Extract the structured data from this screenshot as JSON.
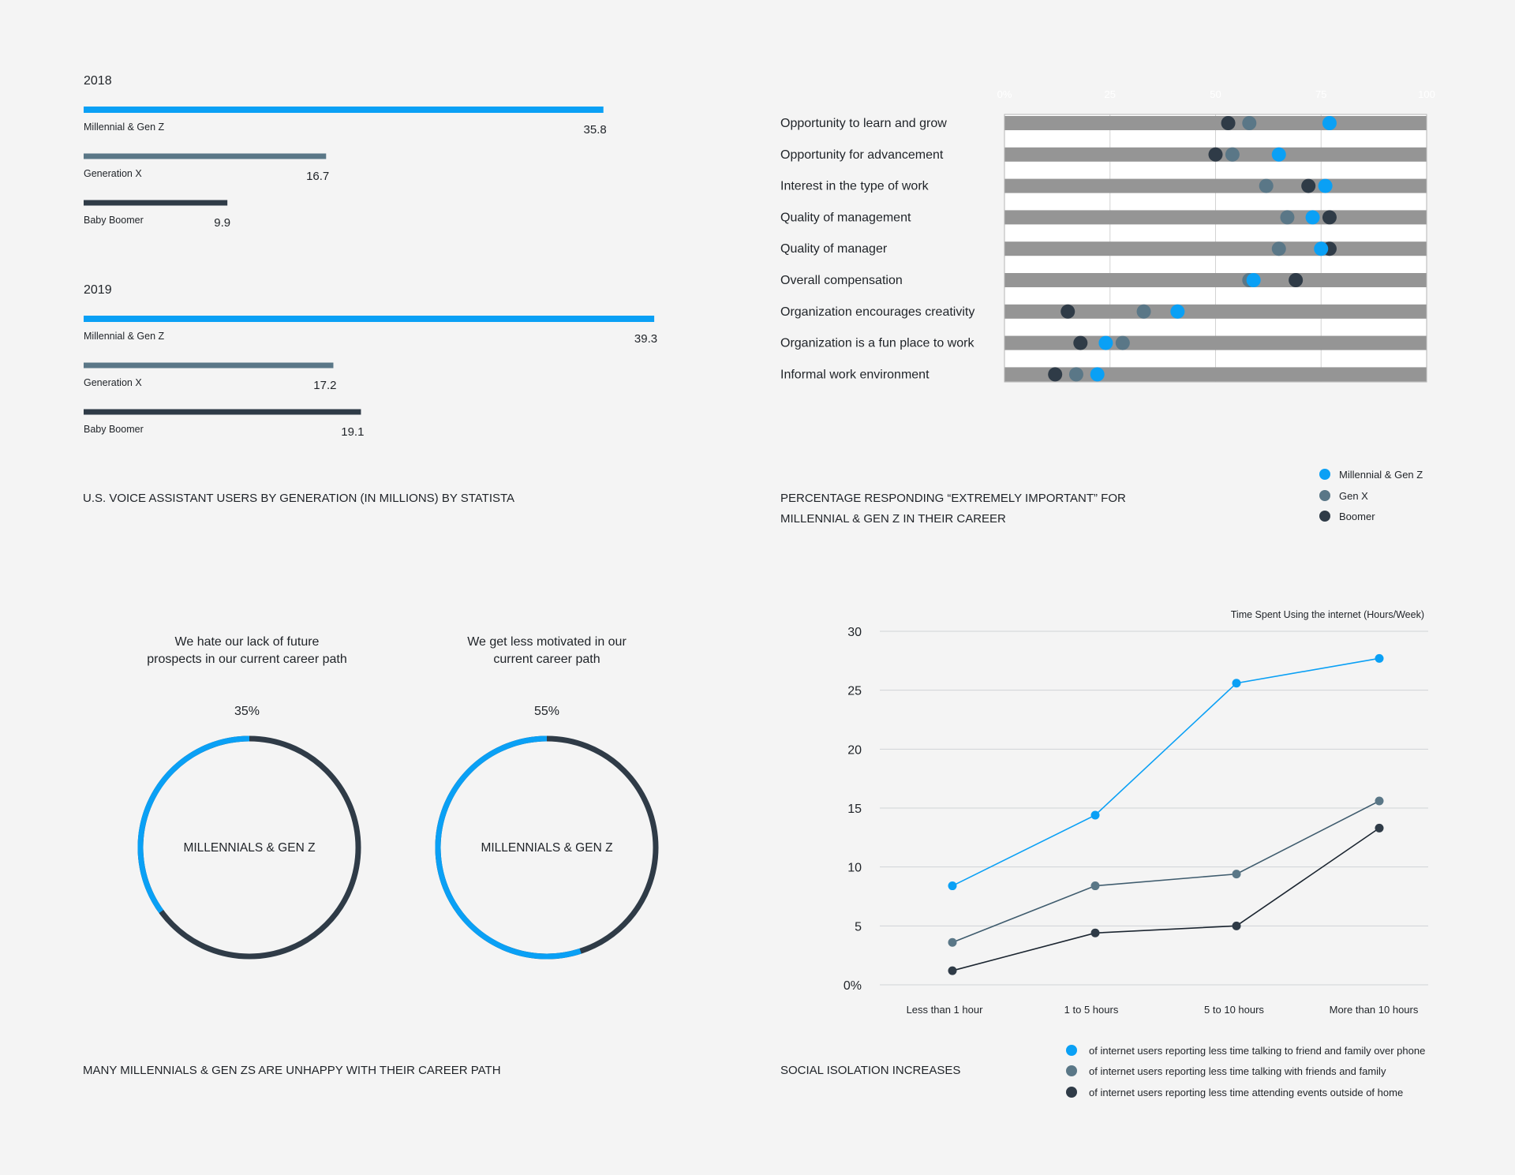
{
  "colors": {
    "millennial": "#0aa0f5",
    "genx": "#5a7787",
    "boomer": "#2f3b47",
    "background": "#f4f4f4",
    "row_band": "#959595",
    "text": "#1f2328"
  },
  "chart_data": [
    {
      "id": "voice-assistant",
      "type": "bar",
      "orientation": "horizontal",
      "title": "U.S. VOICE ASSISTANT USERS BY GENERATION (IN MILLIONS)  BY STATISTA",
      "groups": [
        {
          "year": "2018",
          "bars": [
            {
              "name": "Millennial & Gen Z",
              "label": "35.8",
              "value": 35.8
            },
            {
              "name": "Generation X",
              "label": "16.7",
              "value": 16.7
            },
            {
              "name": "Baby Boomer",
              "label": "9.9",
              "value": 9.9
            }
          ]
        },
        {
          "year": "2019",
          "bars": [
            {
              "name": "Millennial & Gen Z",
              "label": "39.3",
              "value": 39.3
            },
            {
              "name": "Generation X",
              "label": "17.2",
              "value": 17.2
            },
            {
              "name": "Baby Boomer",
              "label": "19.1",
              "value": 19.1
            }
          ]
        }
      ]
    },
    {
      "id": "extremely-important",
      "type": "scatter",
      "title": "PERCENTAGE RESPONDING “EXTREMELY IMPORTANT” FOR MILLENNIAL & GEN Z IN THEIR CAREER",
      "title_lines": [
        "PERCENTAGE RESPONDING “EXTREMELY IMPORTANT” FOR",
        "MILLENNIAL & GEN Z IN THEIR CAREER"
      ],
      "xlim": [
        0,
        100
      ],
      "x_ticks": [
        "0%",
        "25",
        "50",
        "75",
        "100"
      ],
      "legend_position": "bottom-right",
      "series": [
        {
          "name": "Millennial & Gen Z"
        },
        {
          "name": "Gen X"
        },
        {
          "name": "Boomer"
        }
      ],
      "rows": [
        {
          "label": "Opportunity to learn and grow",
          "millennial": 77,
          "genx": 58,
          "boomer": 53
        },
        {
          "label": "Opportunity for advancement",
          "millennial": 65,
          "genx": 54,
          "boomer": 50
        },
        {
          "label": "Interest in the type of work",
          "millennial": 76,
          "genx": 62,
          "boomer": 72
        },
        {
          "label": "Quality of management",
          "millennial": 73,
          "genx": 67,
          "boomer": 77
        },
        {
          "label": "Quality of manager",
          "millennial": 75,
          "genx": 65,
          "boomer": 77
        },
        {
          "label": "Overall compensation",
          "millennial": 59,
          "genx": 58,
          "boomer": 69
        },
        {
          "label": "Organization encourages creativity",
          "millennial": 41,
          "genx": 33,
          "boomer": 15
        },
        {
          "label": "Organization is a fun place to work",
          "millennial": 24,
          "genx": 28,
          "boomer": 18
        },
        {
          "label": "Informal work environment",
          "millennial": 22,
          "genx": 17,
          "boomer": 12
        }
      ]
    },
    {
      "id": "career-path",
      "type": "pie",
      "title": "MANY MILLENNIALS & GEN ZS ARE UNHAPPY WITH THEIR CAREER PATH",
      "donuts": [
        {
          "question_lines": [
            "We hate our lack of future",
            "prospects in our current career path"
          ],
          "percent_label": "35%",
          "value": 35,
          "center_label": "MILLENNIALS & GEN Z"
        },
        {
          "question_lines": [
            "We get less motivated in our",
            "current career path"
          ],
          "percent_label": "55%",
          "value": 55,
          "center_label": "MILLENNIALS & GEN Z"
        }
      ]
    },
    {
      "id": "social-isolation",
      "type": "line",
      "title": "SOCIAL ISOLATION INCREASES",
      "subtitle": "Time Spent Using the internet (Hours/Week)",
      "categories": [
        "Less than 1 hour",
        "1 to 5 hours",
        "5 to 10 hours",
        "More than 10 hours"
      ],
      "ylim": [
        0,
        30
      ],
      "y_ticks": [
        "0%",
        "5",
        "10",
        "15",
        "20",
        "25",
        "30"
      ],
      "grid": true,
      "series": [
        {
          "name": "of internet users reporting less time talking to friend and family over phone",
          "values": [
            8.4,
            14.4,
            25.6,
            27.7
          ]
        },
        {
          "name": "of internet users reporting less time talking with friends and family",
          "values": [
            3.6,
            8.4,
            9.4,
            15.6
          ]
        },
        {
          "name": "of internet users reporting less time attending events outside of home",
          "values": [
            1.2,
            4.4,
            5.0,
            13.3
          ]
        }
      ]
    }
  ]
}
